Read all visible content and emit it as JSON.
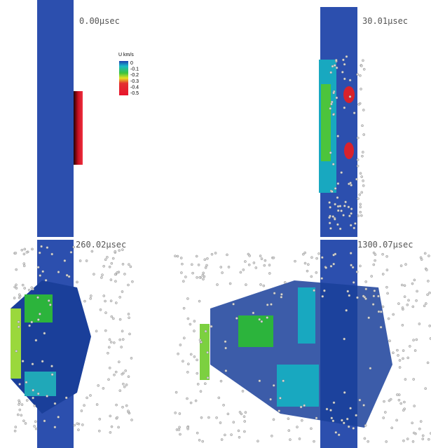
{
  "panels": [
    {
      "time_label": "0.00μsec"
    },
    {
      "time_label": "30.01μsec"
    },
    {
      "time_label": "260.02μsec"
    },
    {
      "time_label": "1300.07μsec"
    }
  ],
  "colorbar": {
    "title": "U km/s",
    "labels": [
      "0",
      "-0.1",
      "-0.2",
      "-0.3",
      "-0.4",
      "-0.5"
    ]
  }
}
